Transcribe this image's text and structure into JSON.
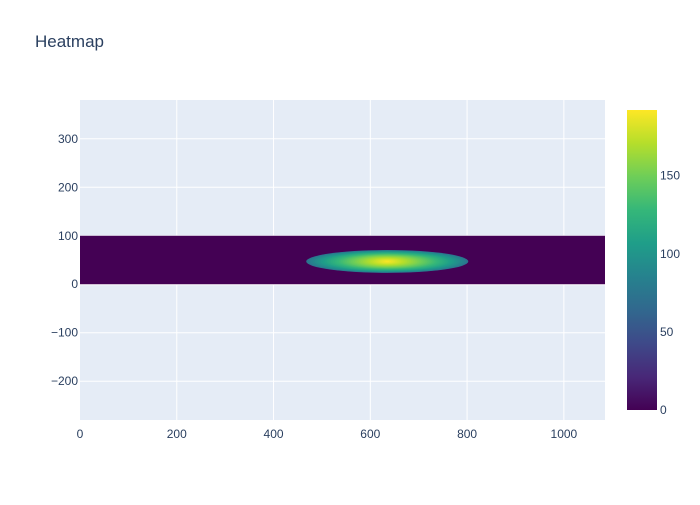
{
  "chart_data": {
    "type": "heatmap",
    "title": "Heatmap",
    "xlabel": "",
    "ylabel": "",
    "xlim": [
      0,
      1085
    ],
    "ylim": [
      -280,
      380
    ],
    "x_ticks": [
      0,
      200,
      400,
      600,
      800,
      1000
    ],
    "y_ticks": [
      -200,
      -100,
      0,
      100,
      200,
      300
    ],
    "x_tick_labels": [
      "0",
      "200",
      "400",
      "600",
      "800",
      "1000"
    ],
    "y_tick_labels": [
      "−200",
      "−100",
      "0",
      "100",
      "200",
      "300"
    ],
    "grid": true,
    "colorscale": "Viridis",
    "colorscale_stops": [
      "#440154",
      "#482878",
      "#3e4989",
      "#31688e",
      "#26828e",
      "#1f9e89",
      "#35b779",
      "#6ece58",
      "#b5de2b",
      "#fde725"
    ],
    "zrange": [
      0,
      192
    ],
    "colorbar_ticks": [
      0,
      50,
      100,
      150
    ],
    "colorbar_tick_labels": [
      "0",
      "50",
      "100",
      "150"
    ],
    "heatmap_extent": {
      "x": [
        0,
        1085
      ],
      "y": [
        0,
        100
      ]
    },
    "background_value": 0,
    "blob": {
      "center_x": 635,
      "center_y": 47,
      "x_range": [
        460,
        795
      ],
      "y_range": [
        25,
        72
      ],
      "peak_value": 192
    }
  }
}
